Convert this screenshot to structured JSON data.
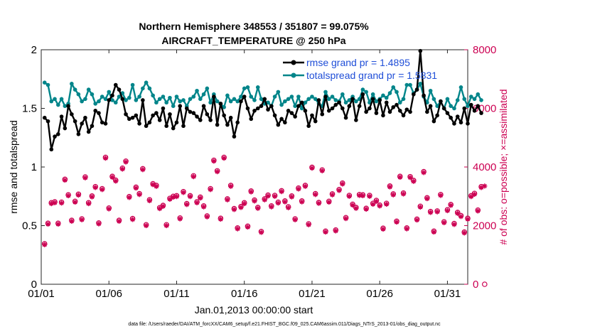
{
  "chart_data": {
    "type": "line",
    "title": "Northern Hemisphere 348553 / 351807 = 99.075%",
    "subtitle": "AIRCRAFT_TEMPERATURE @ 250 hPa",
    "xlabel": "Jan.01,2013 00:00:00 start",
    "ylabel": "rmse and totalspread",
    "ylabel_right": "# of obs: o=possible; ×=assimilated",
    "xlim": [
      0,
      31.5
    ],
    "ylim": [
      0,
      2
    ],
    "ylim_right": [
      0,
      8000
    ],
    "x_ticks": [
      {
        "value": 0,
        "label": "01/01"
      },
      {
        "value": 5,
        "label": "01/06"
      },
      {
        "value": 10,
        "label": "01/11"
      },
      {
        "value": 15,
        "label": "01/16"
      },
      {
        "value": 20,
        "label": "01/21"
      },
      {
        "value": 25,
        "label": "01/26"
      },
      {
        "value": 30,
        "label": "01/31"
      }
    ],
    "y_ticks": [
      {
        "value": 0,
        "label": "0"
      },
      {
        "value": 0.5,
        "label": "0.5"
      },
      {
        "value": 1,
        "label": "1"
      },
      {
        "value": 1.5,
        "label": "1.5"
      },
      {
        "value": 2,
        "label": "2"
      }
    ],
    "y_ticks_right": [
      {
        "value": 0,
        "label": "0"
      },
      {
        "value": 2000,
        "label": "2000"
      },
      {
        "value": 4000,
        "label": "4000"
      },
      {
        "value": 6000,
        "label": "6000"
      },
      {
        "value": 8000,
        "label": "8000"
      }
    ],
    "legend_position": "top-right",
    "x_step": 0.25,
    "series": [
      {
        "name": "rmse grand pr = 1.4895",
        "axis": "left",
        "color": "#000000",
        "values": [
          1.42,
          1.39,
          1.15,
          1.26,
          1.28,
          1.43,
          1.33,
          1.52,
          1.45,
          1.39,
          1.28,
          1.37,
          1.42,
          1.3,
          1.35,
          1.48,
          1.46,
          1.38,
          1.37,
          1.57,
          1.61,
          1.7,
          1.66,
          1.58,
          1.45,
          1.41,
          1.42,
          1.44,
          1.37,
          1.57,
          1.35,
          1.38,
          1.44,
          1.46,
          1.4,
          1.5,
          1.35,
          1.45,
          1.33,
          1.38,
          1.52,
          1.35,
          1.5,
          1.47,
          1.46,
          1.43,
          1.4,
          1.52,
          1.45,
          1.4,
          1.6,
          1.36,
          1.54,
          1.44,
          1.36,
          1.42,
          1.26,
          1.38,
          1.56,
          1.6,
          1.5,
          1.41,
          1.48,
          1.5,
          1.52,
          1.58,
          1.49,
          1.52,
          1.44,
          1.36,
          1.41,
          1.38,
          1.48,
          1.46,
          1.43,
          1.52,
          1.55,
          1.48,
          1.35,
          1.44,
          1.39,
          1.57,
          1.45,
          1.6,
          1.48,
          1.5,
          1.53,
          1.55,
          1.5,
          1.42,
          1.52,
          1.58,
          1.4,
          1.52,
          1.62,
          1.47,
          1.5,
          1.58,
          1.46,
          1.57,
          1.44,
          1.55,
          1.47,
          1.51,
          1.53,
          1.48,
          1.44,
          1.49,
          1.47,
          1.62,
          1.66,
          1.99,
          1.61,
          1.47,
          1.52,
          1.39,
          1.44,
          1.56,
          1.5,
          1.46,
          1.42,
          1.37,
          1.43,
          1.38,
          1.5,
          1.37,
          1.53,
          1.48,
          1.52,
          1.46
        ],
        "legend_marker": "filled-circle"
      },
      {
        "name": "totalspread grand pr = 1.5831",
        "axis": "left",
        "color": "#00858a",
        "values": [
          1.72,
          1.7,
          1.56,
          1.58,
          1.53,
          1.58,
          1.52,
          1.54,
          1.71,
          1.66,
          1.62,
          1.56,
          1.58,
          1.66,
          1.62,
          1.54,
          1.56,
          1.6,
          1.58,
          1.64,
          1.57,
          1.55,
          1.6,
          1.63,
          1.57,
          1.59,
          1.7,
          1.57,
          1.6,
          1.67,
          1.72,
          1.67,
          1.61,
          1.55,
          1.58,
          1.6,
          1.55,
          1.59,
          1.52,
          1.6,
          1.56,
          1.57,
          1.52,
          1.58,
          1.6,
          1.65,
          1.58,
          1.62,
          1.67,
          1.55,
          1.62,
          1.56,
          1.54,
          1.51,
          1.61,
          1.56,
          1.58,
          1.56,
          1.6,
          1.67,
          1.68,
          1.6,
          1.57,
          1.68,
          1.58,
          1.54,
          1.55,
          1.52,
          1.6,
          1.64,
          1.53,
          1.56,
          1.58,
          1.6,
          1.52,
          1.6,
          1.5,
          1.55,
          1.58,
          1.6,
          1.58,
          1.54,
          1.52,
          1.64,
          1.58,
          1.6,
          1.57,
          1.56,
          1.62,
          1.55,
          1.57,
          1.6,
          1.56,
          1.58,
          1.66,
          1.64,
          1.55,
          1.62,
          1.56,
          1.58,
          1.61,
          1.59,
          1.63,
          1.68,
          1.64,
          1.55,
          1.58,
          1.7,
          1.7,
          1.63,
          1.66,
          1.71,
          1.6,
          1.55,
          1.65,
          1.58,
          1.52,
          1.56,
          1.5,
          1.58,
          1.52,
          1.5,
          1.57,
          1.68,
          1.58,
          1.52,
          1.6,
          1.58,
          1.62,
          1.57
        ],
        "legend_marker": "filled-circle"
      },
      {
        "name": "# obs assimilated",
        "axis": "right",
        "color": "#cc0052",
        "values": [
          1350,
          2050,
          2750,
          2780,
          2050,
          2770,
          3550,
          3020,
          2150,
          2800,
          3040,
          2200,
          3630,
          2750,
          2980,
          3300,
          2060,
          3230,
          4300,
          2570,
          3650,
          3520,
          2150,
          3930,
          4170,
          2960,
          2210,
          3280,
          3060,
          3910,
          2000,
          2850,
          3400,
          3340,
          2580,
          2660,
          2000,
          2900,
          2970,
          2990,
          2230,
          3130,
          2720,
          2990,
          3670,
          2780,
          2940,
          2640,
          2300,
          3230,
          4200,
          3840,
          2220,
          4300,
          2880,
          3340,
          2550,
          1890,
          2620,
          2750,
          1950,
          3150,
          2840,
          2590,
          1770,
          2880,
          3010,
          2640,
          3000,
          2770,
          3160,
          2810,
          2610,
          2980,
          2200,
          3250,
          2810,
          3340,
          2030,
          3960,
          3060,
          2760,
          3870,
          1780,
          2800,
          3050,
          1820,
          3200,
          3420,
          2240,
          3000,
          2700,
          2590,
          3030,
          3020,
          2560,
          3000,
          2730,
          2830,
          2670,
          1880,
          2730,
          3320,
          3050,
          2120,
          3650,
          3080,
          1890,
          3640,
          3510,
          2190,
          2630,
          3810,
          2920,
          2450,
          1780,
          2470,
          3030,
          2100,
          2510,
          2690,
          2040,
          2420,
          2310,
          1750,
          2220,
          2990,
          3070,
          2500,
          3300,
          3350
        ],
        "legend_marker": "asterisk"
      },
      {
        "name": "# obs possible",
        "axis": "right",
        "color": "#cc0052",
        "values": [
          1380,
          2080,
          2780,
          2810,
          2080,
          2800,
          3580,
          3050,
          2180,
          2830,
          3070,
          2230,
          3660,
          2780,
          3010,
          3330,
          2090,
          3260,
          4330,
          2600,
          3680,
          3550,
          2180,
          3960,
          4200,
          2990,
          2240,
          3310,
          3090,
          3940,
          2030,
          2880,
          3430,
          3370,
          2610,
          2690,
          2030,
          2930,
          3000,
          3020,
          2260,
          3160,
          2750,
          3020,
          3700,
          2810,
          2970,
          2670,
          2330,
          3260,
          4230,
          3870,
          2250,
          4330,
          2910,
          3370,
          2580,
          1920,
          2650,
          2780,
          1980,
          3180,
          2870,
          2620,
          1800,
          2910,
          3040,
          2670,
          3030,
          2800,
          3190,
          2840,
          2640,
          3010,
          2230,
          3280,
          2840,
          3370,
          2060,
          3990,
          3090,
          2790,
          3900,
          1810,
          2830,
          3080,
          1850,
          3230,
          3450,
          2270,
          3030,
          2730,
          2620,
          3060,
          3050,
          2590,
          3030,
          2760,
          2860,
          2700,
          1910,
          2760,
          3350,
          3080,
          2150,
          3680,
          3110,
          1920,
          3670,
          3540,
          2220,
          2660,
          3840,
          2950,
          2480,
          1810,
          2500,
          3060,
          2130,
          2540,
          2720,
          2070,
          2450,
          2340,
          1780,
          2250,
          3020,
          3100,
          2530,
          3330,
          0
        ],
        "legend_marker": "open-circle"
      }
    ]
  },
  "footnote": "data file: /Users/raeder/DAI/ATM_forcXX/CAM6_setup/f.e21.FHIST_BGC.f09_025.CAM6assim.011/Diags_NTrS_2013-01/obs_diag_output.nc"
}
